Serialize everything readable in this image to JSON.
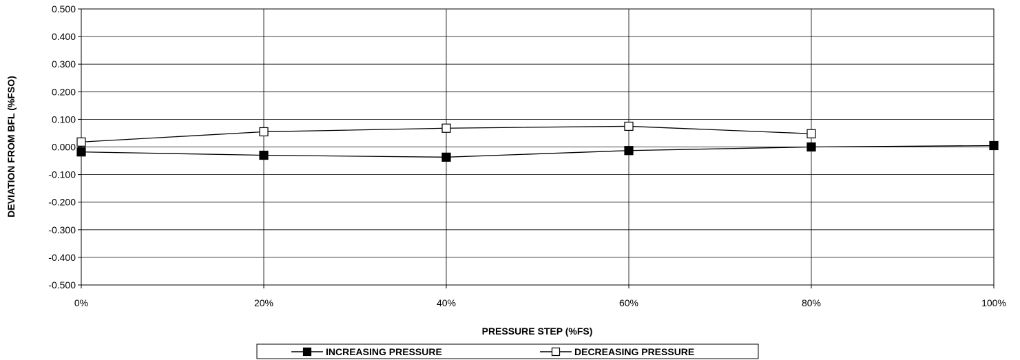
{
  "chart_data": {
    "type": "line",
    "title": "",
    "xlabel": "PRESSURE STEP (%FS)",
    "ylabel": "DEVIATION FROM BFL (%FSO)",
    "x": [
      0,
      20,
      40,
      60,
      80,
      100
    ],
    "x_tick_labels": [
      "0%",
      "20%",
      "40%",
      "60%",
      "80%",
      "100%"
    ],
    "xlim": [
      0,
      100
    ],
    "y_ticks": [
      0.5,
      0.4,
      0.3,
      0.2,
      0.1,
      0.0,
      -0.1,
      -0.2,
      -0.3,
      -0.4,
      -0.5
    ],
    "y_tick_labels": [
      "0.500",
      "0.400",
      "0.300",
      "0.200",
      "0.100",
      "0.000",
      "-0.100",
      "-0.200",
      "-0.300",
      "-0.400",
      "-0.500"
    ],
    "ylim": [
      -0.5,
      0.5
    ],
    "grid": true,
    "legend_position": "bottom",
    "series": [
      {
        "name": "INCREASING PRESSURE",
        "x": [
          0,
          20,
          40,
          60,
          80,
          100
        ],
        "values": [
          -0.018,
          -0.03,
          -0.037,
          -0.013,
          0.0,
          0.005
        ],
        "marker": "filled-square",
        "color": "#000000"
      },
      {
        "name": "DECREASING PRESSURE",
        "x": [
          0,
          20,
          40,
          60,
          80
        ],
        "values": [
          0.018,
          0.055,
          0.068,
          0.075,
          0.048
        ],
        "marker": "hollow-square",
        "color": "#000000"
      }
    ]
  }
}
